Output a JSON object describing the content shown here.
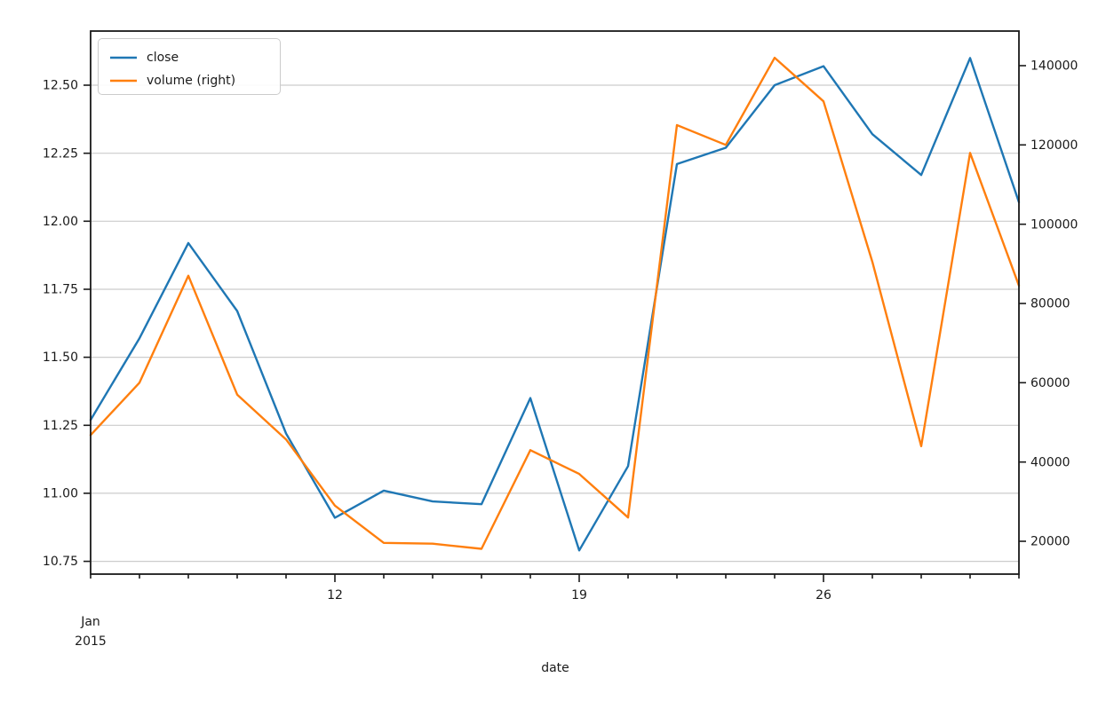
{
  "figure": {
    "xlabel": "date",
    "offset_text": [
      "Jan",
      "2015"
    ],
    "legend": [
      {
        "label": "close",
        "color": "#1f77b4"
      },
      {
        "label": "volume (right)",
        "color": "#ff7f0e"
      }
    ]
  },
  "chart_data": {
    "type": "line",
    "title": "",
    "xlabel": "date",
    "ylabel": "",
    "x_frequency": "business-day",
    "x": [
      "2015-01-05",
      "2015-01-06",
      "2015-01-07",
      "2015-01-08",
      "2015-01-09",
      "2015-01-12",
      "2015-01-13",
      "2015-01-14",
      "2015-01-15",
      "2015-01-16",
      "2015-01-19",
      "2015-01-20",
      "2015-01-21",
      "2015-01-22",
      "2015-01-23",
      "2015-01-26",
      "2015-01-27",
      "2015-01-28",
      "2015-01-29",
      "2015-01-30"
    ],
    "x_tick_labels": [
      {
        "index": 5,
        "label": "12"
      },
      {
        "index": 10,
        "label": "19"
      },
      {
        "index": 15,
        "label": "26"
      }
    ],
    "x_offset_label": "Jan 2015",
    "series": [
      {
        "name": "close",
        "axis": "left",
        "color": "#1f77b4",
        "values": [
          11.27,
          11.57,
          11.92,
          11.67,
          11.22,
          10.91,
          11.01,
          10.97,
          10.96,
          11.35,
          10.79,
          11.1,
          12.21,
          12.27,
          12.5,
          12.57,
          12.32,
          12.17,
          12.6,
          12.07
        ]
      },
      {
        "name": "volume (right)",
        "axis": "right",
        "color": "#ff7f0e",
        "values": [
          46800,
          60000,
          87000,
          57000,
          45700,
          29000,
          19600,
          19400,
          18100,
          43000,
          37000,
          26000,
          125000,
          120000,
          142000,
          131000,
          90500,
          44000,
          118000,
          84500
        ]
      }
    ],
    "left_axis": {
      "range": [
        10.703,
        12.699
      ],
      "ticks": [
        {
          "v": 12.5,
          "label": "12.50"
        },
        {
          "v": 12.25,
          "label": "12.25"
        },
        {
          "v": 12.0,
          "label": "12.00"
        },
        {
          "v": 11.75,
          "label": "11.75"
        },
        {
          "v": 11.5,
          "label": "11.50"
        },
        {
          "v": 11.25,
          "label": "11.25"
        },
        {
          "v": 11.0,
          "label": "11.00"
        },
        {
          "v": 10.75,
          "label": "10.75"
        }
      ]
    },
    "right_axis": {
      "range": [
        11713,
        148734
      ],
      "ticks": [
        {
          "v": 140000,
          "label": "140000"
        },
        {
          "v": 120000,
          "label": "120000"
        },
        {
          "v": 100000,
          "label": "100000"
        },
        {
          "v": 80000,
          "label": "80000"
        },
        {
          "v": 60000,
          "label": "60000"
        },
        {
          "v": 40000,
          "label": "40000"
        },
        {
          "v": 20000,
          "label": "20000"
        }
      ]
    },
    "grid": "horizontal",
    "legend_position": "upper left"
  }
}
